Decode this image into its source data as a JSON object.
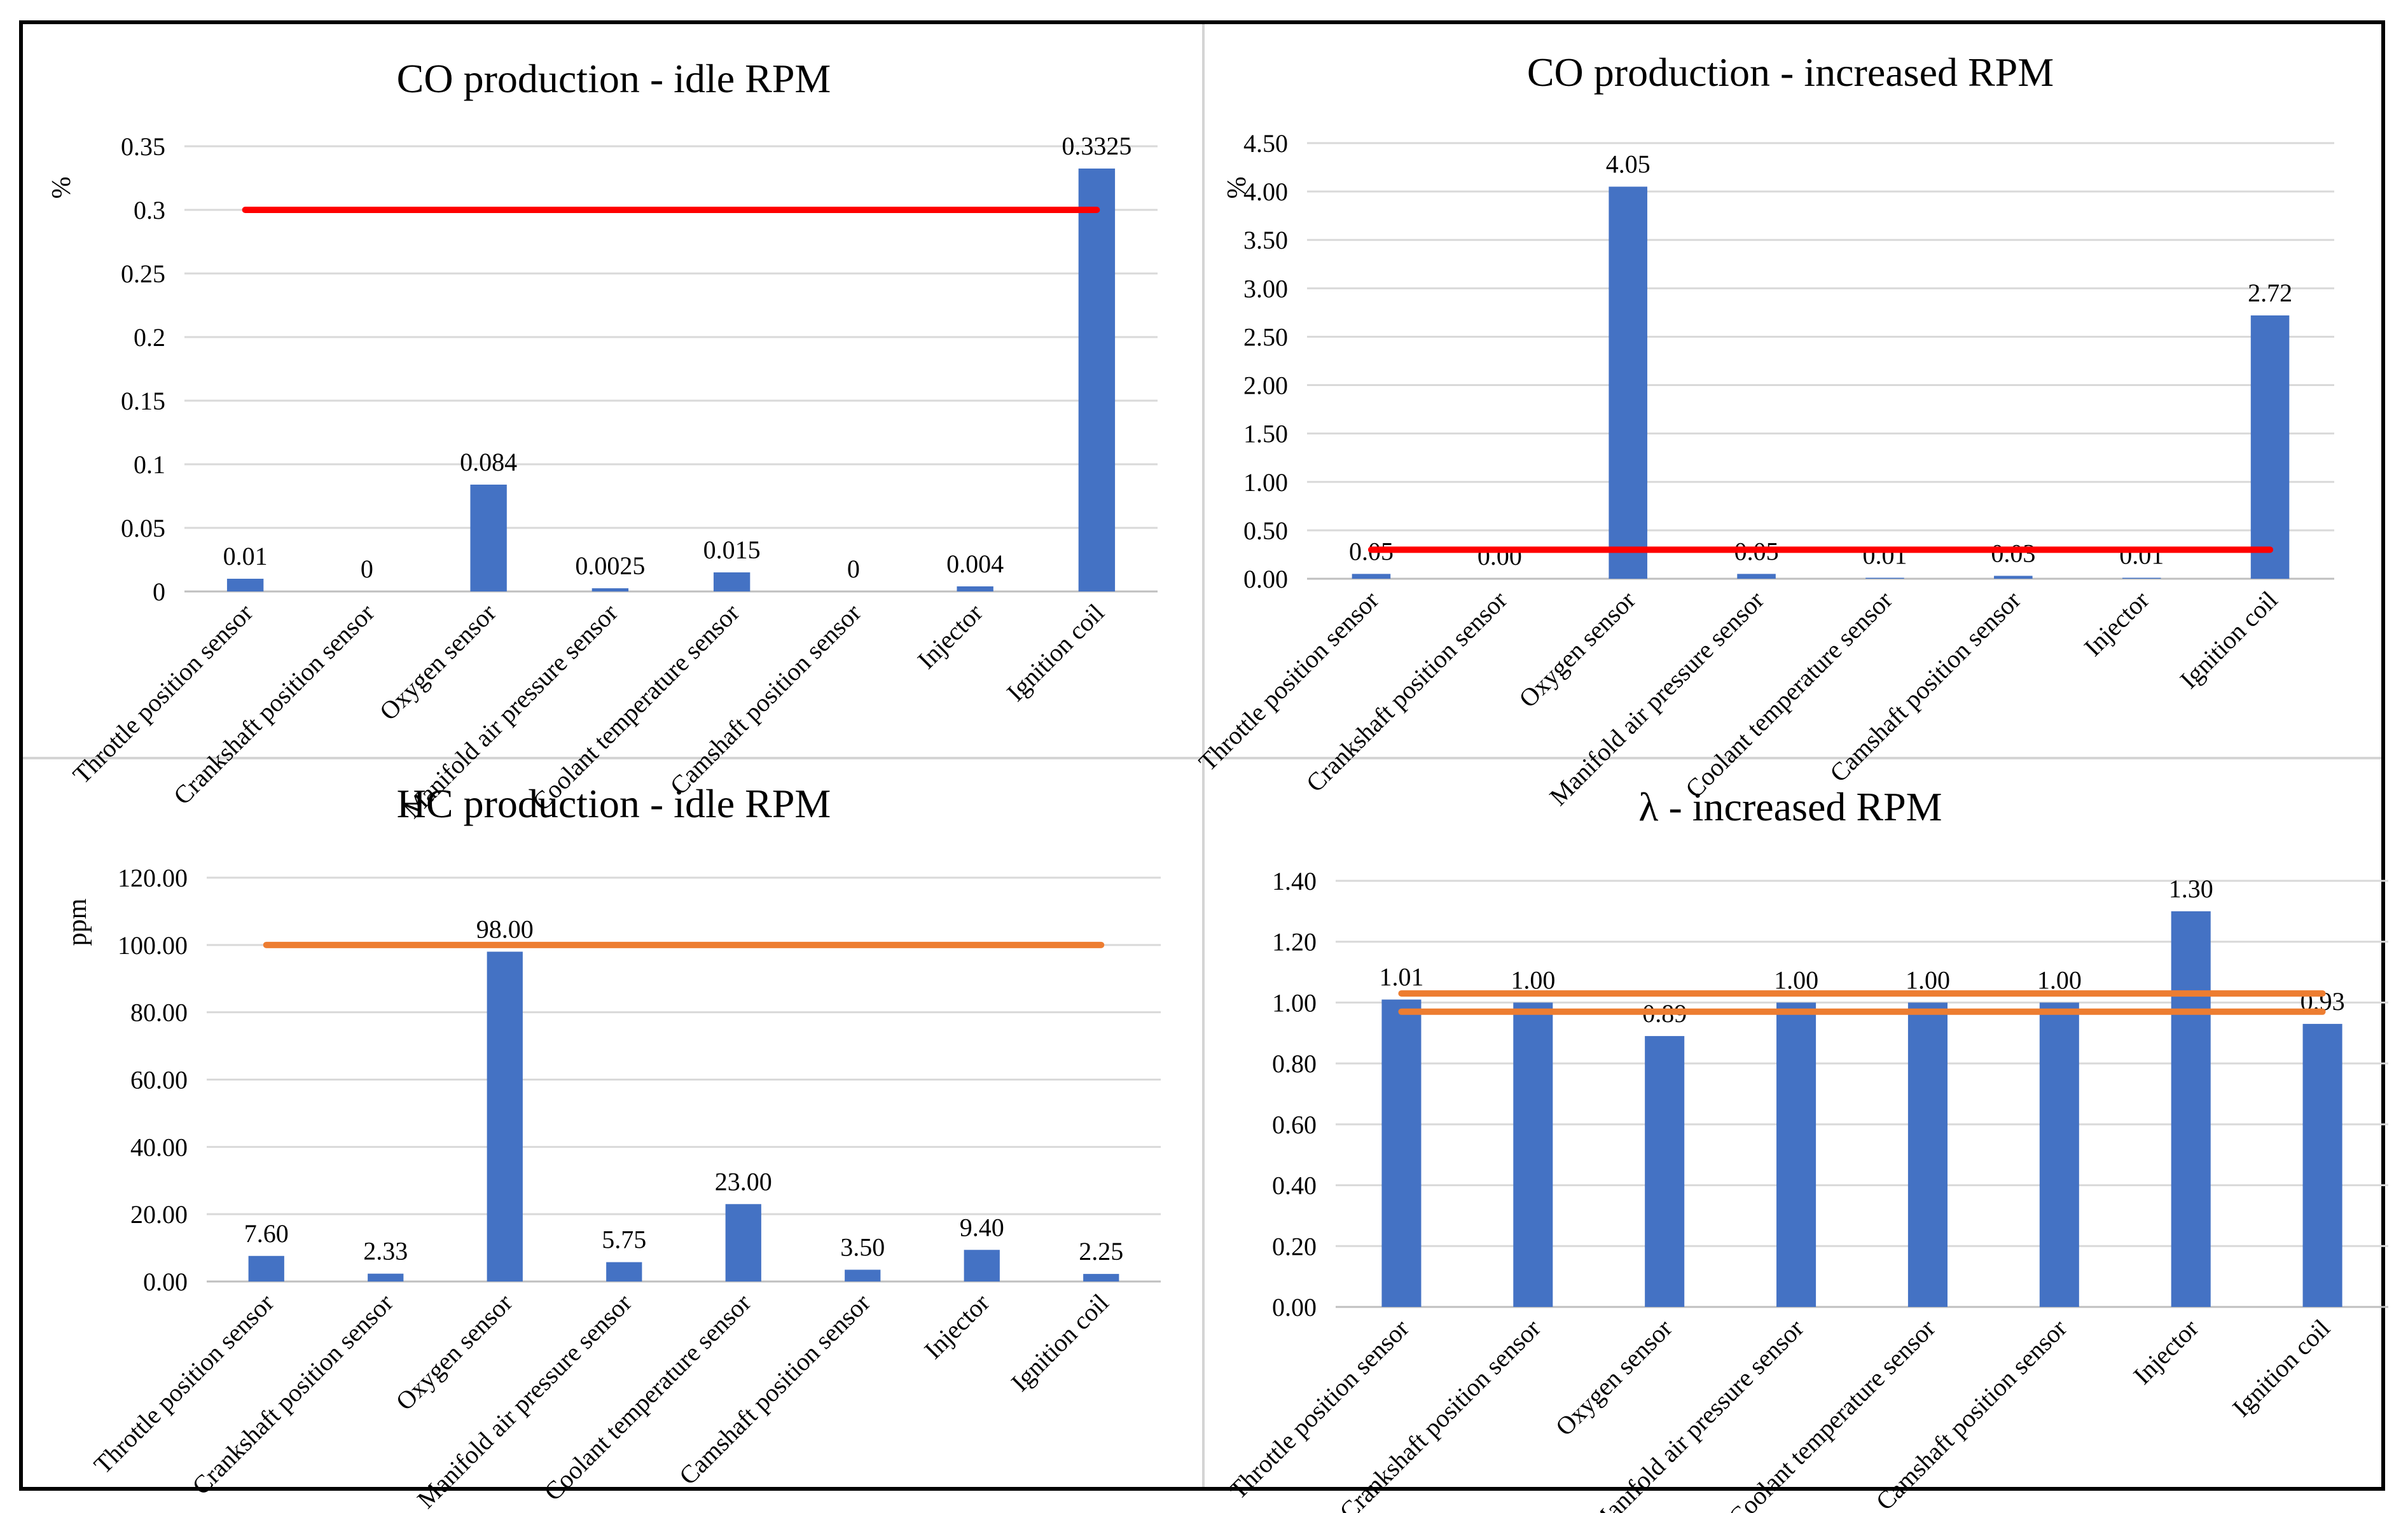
{
  "colors": {
    "bar": "#4472c4",
    "grid": "#d9d9d9",
    "red_line": "#ff0000",
    "orange_line": "#ed7d31"
  },
  "chart_data": [
    {
      "type": "bar",
      "title": "CO production - idle  RPM",
      "ylabel": "%",
      "categories": [
        "Throttle position sensor",
        "Crankshaft position sensor",
        "Oxygen sensor",
        "Manifold air pressure sensor",
        "Coolant temperature sensor",
        "Camshaft position sensor",
        "Injector",
        "Ignition coil"
      ],
      "values": [
        0.01,
        0,
        0.084,
        0.0025,
        0.015,
        0,
        0.004,
        0.3325
      ],
      "value_labels": [
        "0.01",
        "0",
        "0.084",
        "0.0025",
        "0.015",
        "0",
        "0.004",
        "0.3325"
      ],
      "ylim": [
        0,
        0.35
      ],
      "yticks": [
        "0",
        "0.05",
        "0.1",
        "0.15",
        "0.2",
        "0.25",
        "0.3",
        "0.35"
      ],
      "limit_lines": [
        {
          "value": 0.3,
          "color": "red"
        }
      ],
      "grid": true,
      "legend": "none"
    },
    {
      "type": "bar",
      "title": "CO production - increased RPM",
      "ylabel": "%",
      "categories": [
        "Throttle position sensor",
        "Crankshaft position sensor",
        "Oxygen sensor",
        "Manifold air pressure sensor",
        "Coolant temperature sensor",
        "Camshaft position sensor",
        "Injector",
        "Ignition coil"
      ],
      "values": [
        0.05,
        0.0,
        4.05,
        0.05,
        0.01,
        0.03,
        0.01,
        2.72
      ],
      "value_labels": [
        "0.05",
        "0.00",
        "4.05",
        "0.05",
        "0.01",
        "0.03",
        "0.01",
        "2.72"
      ],
      "ylim": [
        0,
        4.5
      ],
      "yticks": [
        "0.00",
        "0.50",
        "1.00",
        "1.50",
        "2.00",
        "2.50",
        "3.00",
        "3.50",
        "4.00",
        "4.50"
      ],
      "limit_lines": [
        {
          "value": 0.3,
          "color": "red"
        }
      ],
      "grid": true,
      "legend": "none"
    },
    {
      "type": "bar",
      "title": "HC production - idle  RPM",
      "ylabel": "ppm",
      "categories": [
        "Throttle position sensor",
        "Crankshaft position sensor",
        "Oxygen sensor",
        "Manifold air pressure sensor",
        "Coolant temperature sensor",
        "Camshaft position sensor",
        "Injector",
        "Ignition coil"
      ],
      "values": [
        7.6,
        2.33,
        98.0,
        5.75,
        23.0,
        3.5,
        9.4,
        2.25
      ],
      "value_labels": [
        "7.60",
        "2.33",
        "98.00",
        "5.75",
        "23.00",
        "3.50",
        "9.40",
        "2.25"
      ],
      "ylim": [
        0,
        120
      ],
      "yticks": [
        "0.00",
        "20.00",
        "40.00",
        "60.00",
        "80.00",
        "100.00",
        "120.00"
      ],
      "limit_lines": [
        {
          "value": 100,
          "color": "orange"
        }
      ],
      "grid": true,
      "legend": "none"
    },
    {
      "type": "bar",
      "title": "λ  - increased RPM",
      "ylabel": "",
      "categories": [
        "Throttle position sensor",
        "Crankshaft position sensor",
        "Oxygen sensor",
        "Manifold air pressure sensor",
        "Coolant temperature sensor",
        "Camshaft position sensor",
        "Injector",
        "Ignition coil"
      ],
      "values": [
        1.01,
        1.0,
        0.89,
        1.0,
        1.0,
        1.0,
        1.3,
        0.93
      ],
      "value_labels": [
        "1.01",
        "1.00",
        "0.89",
        "1.00",
        "1.00",
        "1.00",
        "1.30",
        "0.93"
      ],
      "ylim": [
        0,
        1.4
      ],
      "yticks": [
        "0.00",
        "0.20",
        "0.40",
        "0.60",
        "0.80",
        "1.00",
        "1.20",
        "1.40"
      ],
      "limit_lines": [
        {
          "value": 1.03,
          "color": "orange"
        },
        {
          "value": 0.97,
          "color": "orange"
        }
      ],
      "grid": true,
      "legend": "none"
    }
  ]
}
